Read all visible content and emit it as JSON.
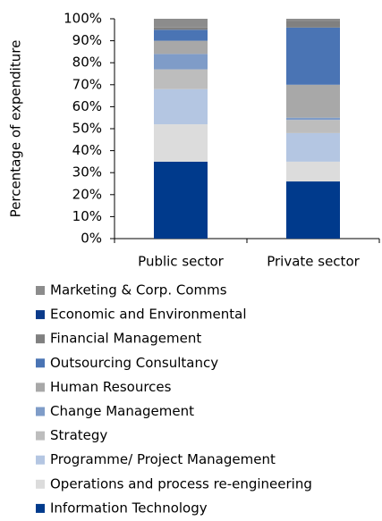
{
  "chart_data": {
    "type": "stacked_bar",
    "ylabel": "Percentage of expenditure",
    "categories": [
      "Public sector",
      "Private sector"
    ],
    "series": [
      {
        "name": "Information Technology",
        "color": "#003a8c",
        "values": [
          35,
          26
        ]
      },
      {
        "name": "Operations and process re-engineering",
        "color": "#dcdcdc",
        "values": [
          17,
          9
        ]
      },
      {
        "name": "Programme/ Project Management",
        "color": "#b4c6e2",
        "values": [
          16,
          13
        ]
      },
      {
        "name": "Strategy",
        "color": "#bdbdbd",
        "values": [
          9,
          6
        ]
      },
      {
        "name": "Change Management",
        "color": "#7f9cc8",
        "values": [
          7,
          1
        ]
      },
      {
        "name": "Human Resources",
        "color": "#a8a8a8",
        "values": [
          6,
          15
        ]
      },
      {
        "name": "Outsourcing Consultancy",
        "color": "#4a74b4",
        "values": [
          5,
          26
        ]
      },
      {
        "name": "Financial Management",
        "color": "#808080",
        "values": [
          1,
          3
        ]
      },
      {
        "name": "Economic and Environmental",
        "color": "#0b3a8a",
        "values": [
          0,
          0
        ]
      },
      {
        "name": "Marketing & Corp. Comms",
        "color": "#8c8c8c",
        "values": [
          4,
          1
        ]
      }
    ],
    "ylim": [
      0,
      100
    ],
    "yticks": [
      {
        "value": 0,
        "label": "0%"
      },
      {
        "value": 10,
        "label": "10%"
      },
      {
        "value": 20,
        "label": "20%"
      },
      {
        "value": 30,
        "label": "30%"
      },
      {
        "value": 40,
        "label": "40%"
      },
      {
        "value": 50,
        "label": "50%"
      },
      {
        "value": 60,
        "label": "60%"
      },
      {
        "value": 70,
        "label": "70%"
      },
      {
        "value": 80,
        "label": "80%"
      },
      {
        "value": 90,
        "label": "90%"
      },
      {
        "value": 100,
        "label": "100%"
      }
    ],
    "legend": "bottom"
  }
}
